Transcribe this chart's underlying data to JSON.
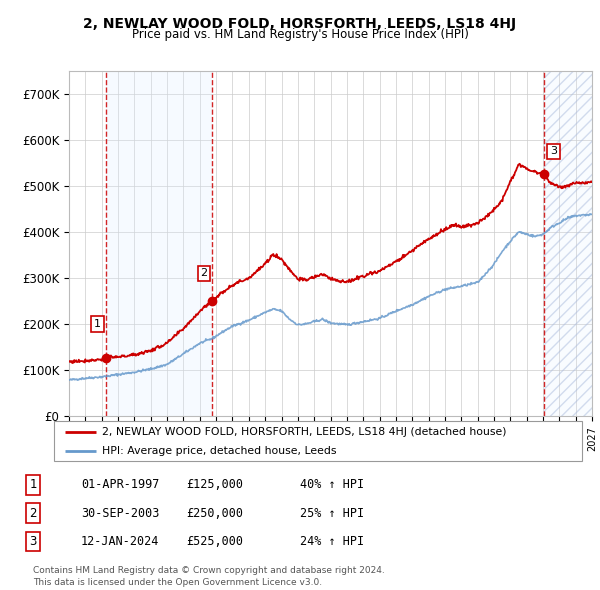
{
  "title": "2, NEWLAY WOOD FOLD, HORSFORTH, LEEDS, LS18 4HJ",
  "subtitle": "Price paid vs. HM Land Registry's House Price Index (HPI)",
  "ylim": [
    0,
    750000
  ],
  "yticks": [
    0,
    100000,
    200000,
    300000,
    400000,
    500000,
    600000,
    700000
  ],
  "ytick_labels": [
    "£0",
    "£100K",
    "£200K",
    "£300K",
    "£400K",
    "£500K",
    "£600K",
    "£700K"
  ],
  "sale_years_float": [
    1997.25,
    2003.75,
    2024.04
  ],
  "sale_prices": [
    125000,
    250000,
    525000
  ],
  "sale_labels": [
    "1",
    "2",
    "3"
  ],
  "red_line_color": "#cc0000",
  "blue_line_color": "#6699cc",
  "shading_color": "#ddeeff",
  "legend_entry1": "2, NEWLAY WOOD FOLD, HORSFORTH, LEEDS, LS18 4HJ (detached house)",
  "legend_entry2": "HPI: Average price, detached house, Leeds",
  "table_rows": [
    [
      "1",
      "01-APR-1997",
      "£125,000",
      "40% ↑ HPI"
    ],
    [
      "2",
      "30-SEP-2003",
      "£250,000",
      "25% ↑ HPI"
    ],
    [
      "3",
      "12-JAN-2024",
      "£525,000",
      "24% ↑ HPI"
    ]
  ],
  "footer": "Contains HM Land Registry data © Crown copyright and database right 2024.\nThis data is licensed under the Open Government Licence v3.0.",
  "xstart": 1995,
  "xend": 2027
}
